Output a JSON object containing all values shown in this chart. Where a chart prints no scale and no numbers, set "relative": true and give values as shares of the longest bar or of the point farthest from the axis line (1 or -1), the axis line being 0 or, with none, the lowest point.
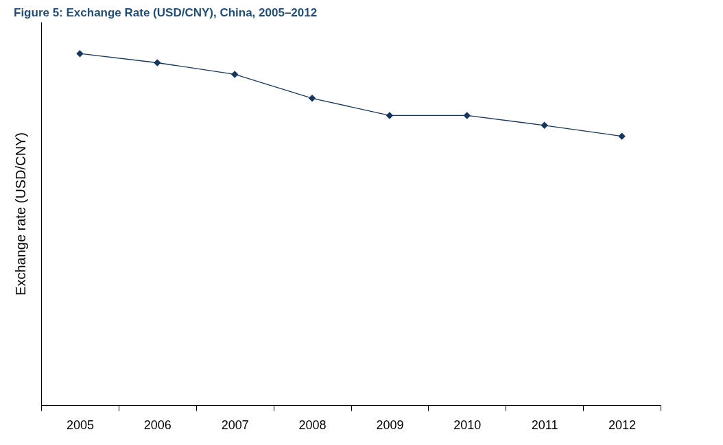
{
  "chart_data": {
    "type": "line",
    "title": "Figure 5: Exchange Rate (USD/CNY), China, 2005–2012",
    "ylabel": "Exchange rate  (USD/CNY)",
    "relative": true,
    "categories": [
      "2005",
      "2006",
      "2007",
      "2008",
      "2009",
      "2010",
      "2011",
      "2012"
    ],
    "series": [
      {
        "color": "#17375e",
        "values": [
          1,
          0.974,
          0.941,
          0.873,
          0.824,
          0.824,
          0.796,
          0.765
        ]
      }
    ],
    "marker": "diamond",
    "line_style": "solid",
    "grid": false
  }
}
